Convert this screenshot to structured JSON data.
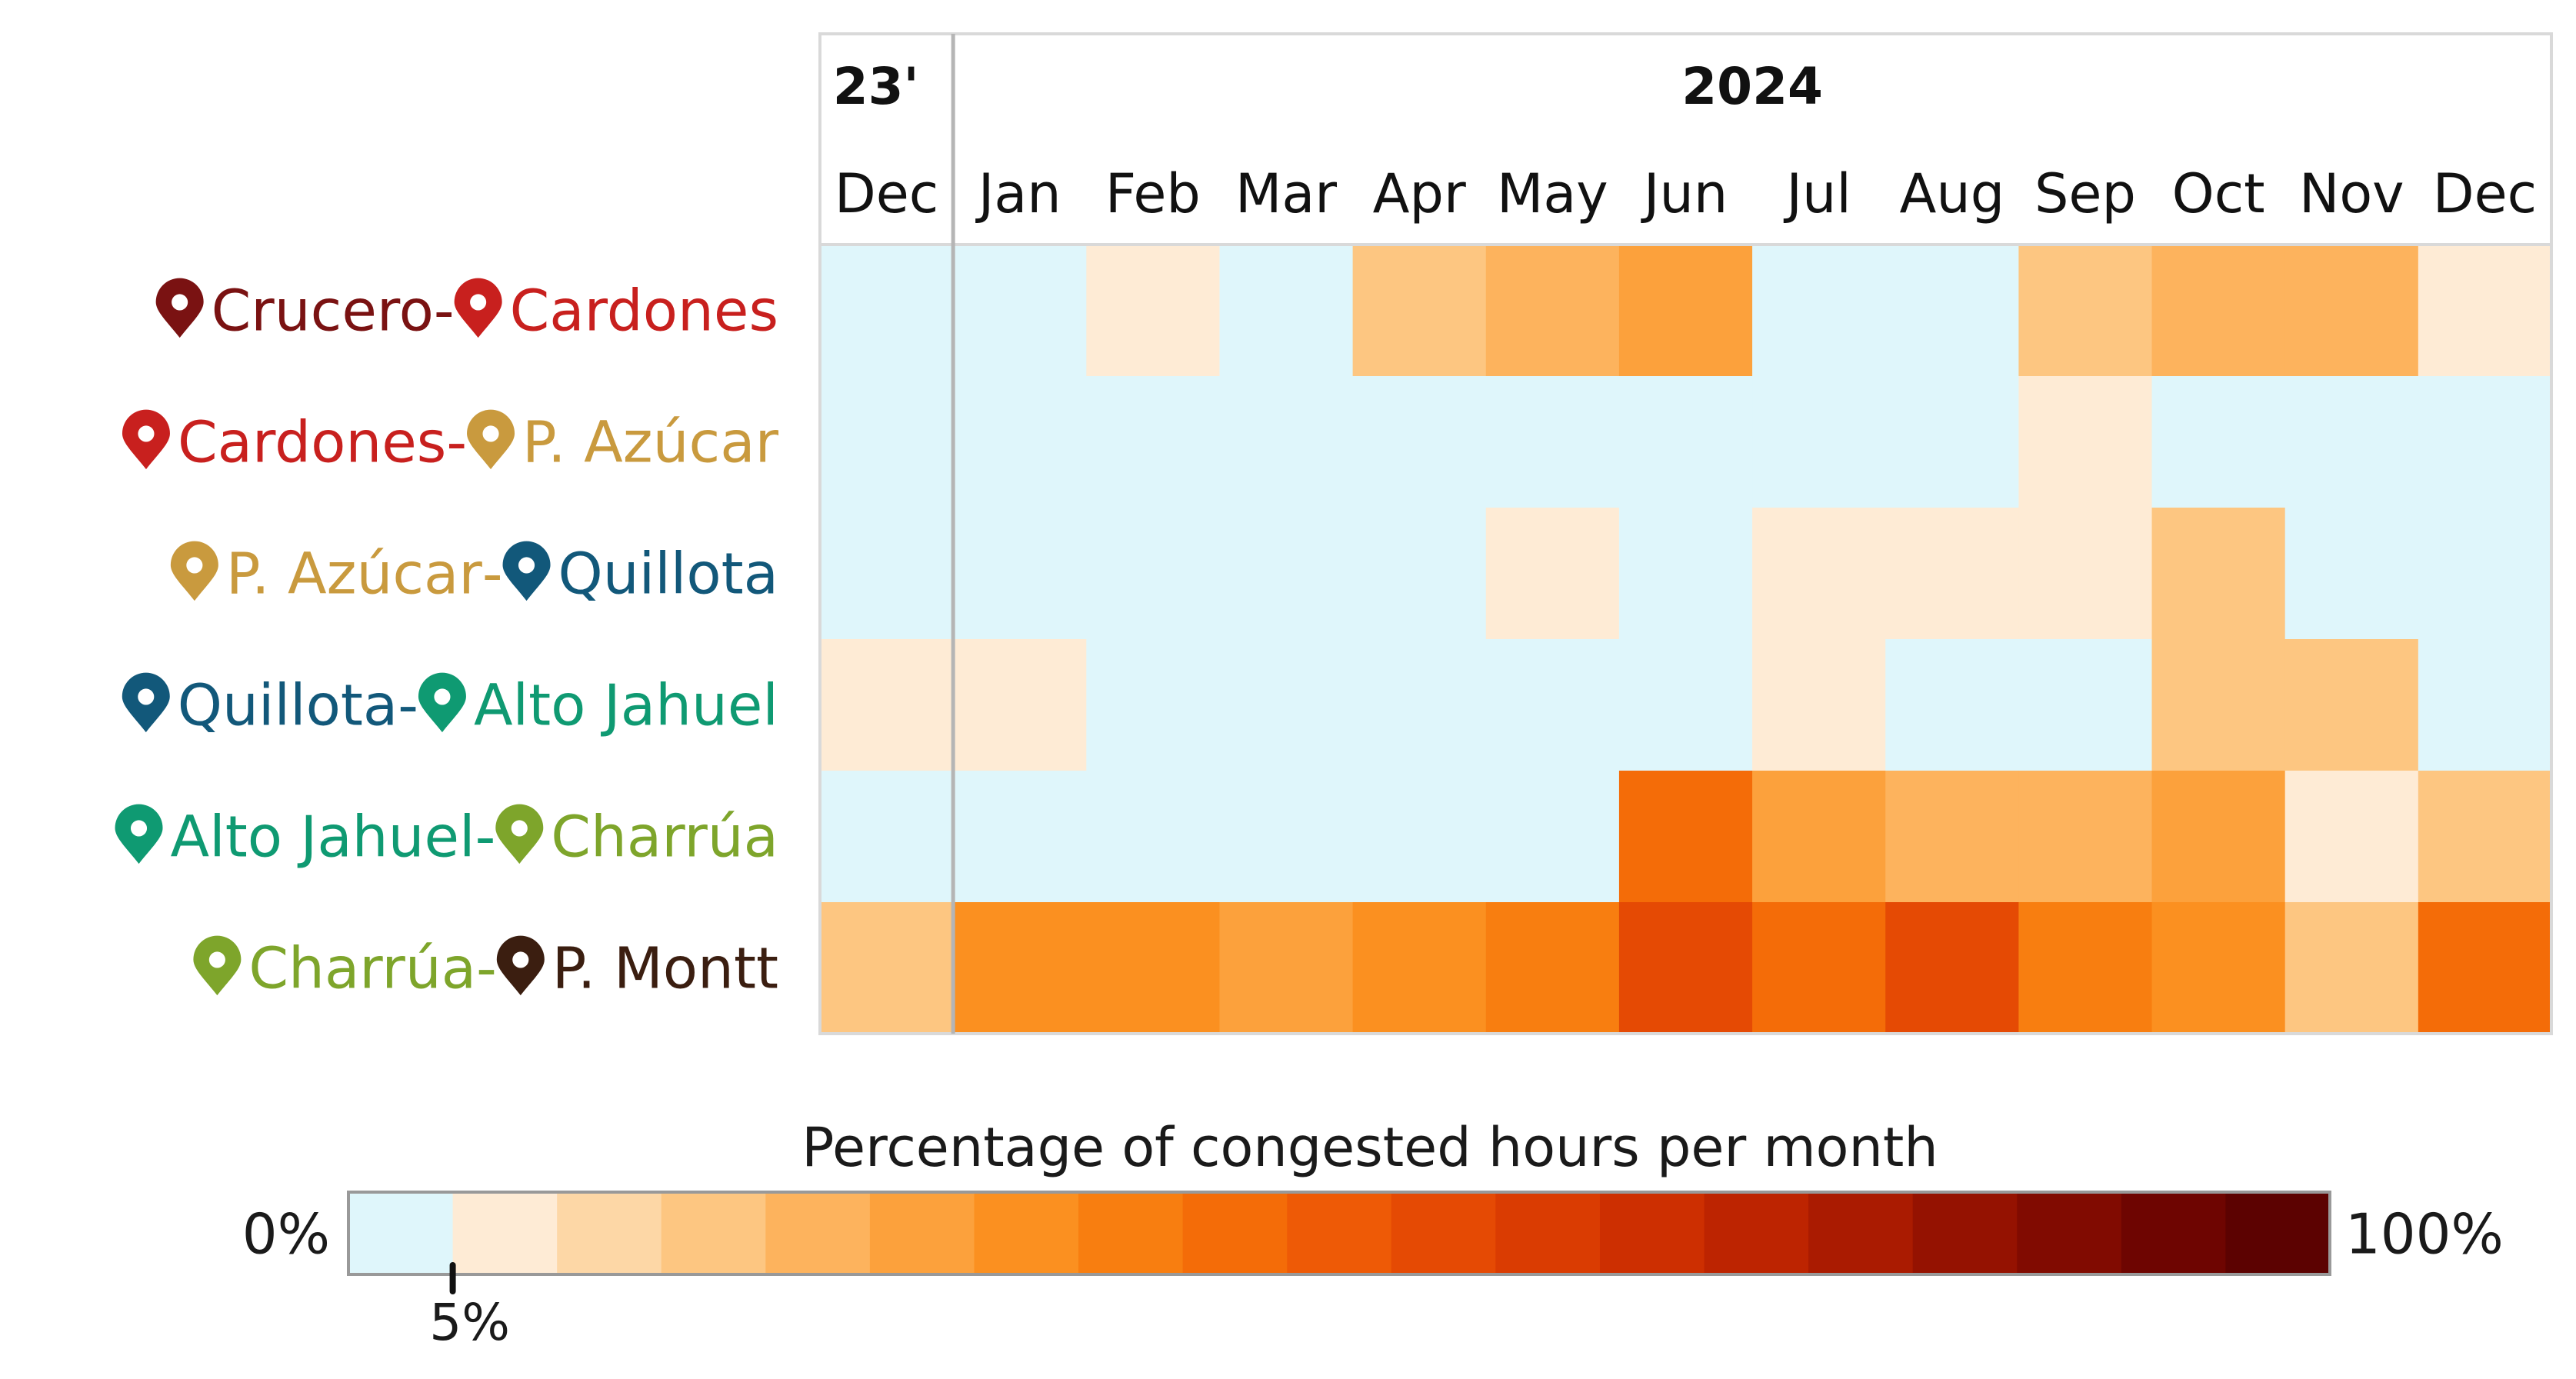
{
  "chart_data": {
    "type": "heatmap",
    "year_headers": [
      {
        "label": "23'"
      },
      {
        "label": "2024"
      }
    ],
    "months": [
      "Dec",
      "Jan",
      "Feb",
      "Mar",
      "Apr",
      "May",
      "Jun",
      "Jul",
      "Aug",
      "Sep",
      "Oct",
      "Nov",
      "Dec"
    ],
    "corridors": [
      {
        "from": {
          "name": "Crucero",
          "color": "#7a1212"
        },
        "to": {
          "name": "Cardones",
          "color": "#c8201e"
        }
      },
      {
        "from": {
          "name": "Cardones",
          "color": "#c8201e"
        },
        "to": {
          "name": "P. Azúcar",
          "color": "#c99a3e"
        }
      },
      {
        "from": {
          "name": "P. Azúcar",
          "color": "#c99a3e"
        },
        "to": {
          "name": "Quillota",
          "color": "#12587a"
        }
      },
      {
        "from": {
          "name": "Quillota",
          "color": "#12587a"
        },
        "to": {
          "name": "Alto Jahuel",
          "color": "#0f9a72"
        }
      },
      {
        "from": {
          "name": "Alto Jahuel",
          "color": "#0f9a72"
        },
        "to": {
          "name": "Charrúa",
          "color": "#7ea52b"
        }
      },
      {
        "from": {
          "name": "Charrúa",
          "color": "#7ea52b"
        },
        "to": {
          "name": "P. Montt",
          "color": "#3b1e10"
        }
      }
    ],
    "separator": " - ",
    "bins": [
      {
        "index": 0,
        "color": "#dff6fb"
      },
      {
        "index": 1,
        "color": "#feebd5"
      },
      {
        "index": 2,
        "color": "#fdd7a6"
      },
      {
        "index": 3,
        "color": "#fdc681"
      },
      {
        "index": 4,
        "color": "#fdb35d"
      },
      {
        "index": 5,
        "color": "#fca13c"
      },
      {
        "index": 6,
        "color": "#fb9020"
      },
      {
        "index": 7,
        "color": "#f87e10"
      },
      {
        "index": 8,
        "color": "#f46c08"
      },
      {
        "index": 9,
        "color": "#ee5a06"
      },
      {
        "index": 10,
        "color": "#e54a04"
      },
      {
        "index": 11,
        "color": "#da3c02"
      },
      {
        "index": 12,
        "color": "#cd2f01"
      },
      {
        "index": 13,
        "color": "#bd2401"
      },
      {
        "index": 14,
        "color": "#aa1b01"
      },
      {
        "index": 15,
        "color": "#951201"
      },
      {
        "index": 16,
        "color": "#810b01"
      },
      {
        "index": 17,
        "color": "#6e0501"
      },
      {
        "index": 18,
        "color": "#5c0201"
      }
    ],
    "values": [
      [
        0,
        0,
        1,
        0,
        3,
        4,
        5,
        0,
        0,
        3,
        4,
        4,
        1
      ],
      [
        0,
        0,
        0,
        0,
        0,
        0,
        0,
        0,
        0,
        1,
        0,
        0,
        0
      ],
      [
        0,
        0,
        0,
        0,
        0,
        1,
        0,
        1,
        1,
        1,
        3,
        0,
        0
      ],
      [
        1,
        1,
        0,
        0,
        0,
        0,
        0,
        1,
        0,
        0,
        3,
        3,
        0
      ],
      [
        0,
        0,
        0,
        0,
        0,
        0,
        8,
        5,
        4,
        4,
        5,
        1,
        3
      ],
      [
        3,
        6,
        6,
        5,
        6,
        7,
        10,
        8,
        10,
        7,
        6,
        3,
        8
      ]
    ],
    "legend": {
      "title": "Percentage of congested hours per month",
      "min_label": "0%",
      "max_label": "100%",
      "tick_label": "5%",
      "tick_value": 5
    }
  }
}
